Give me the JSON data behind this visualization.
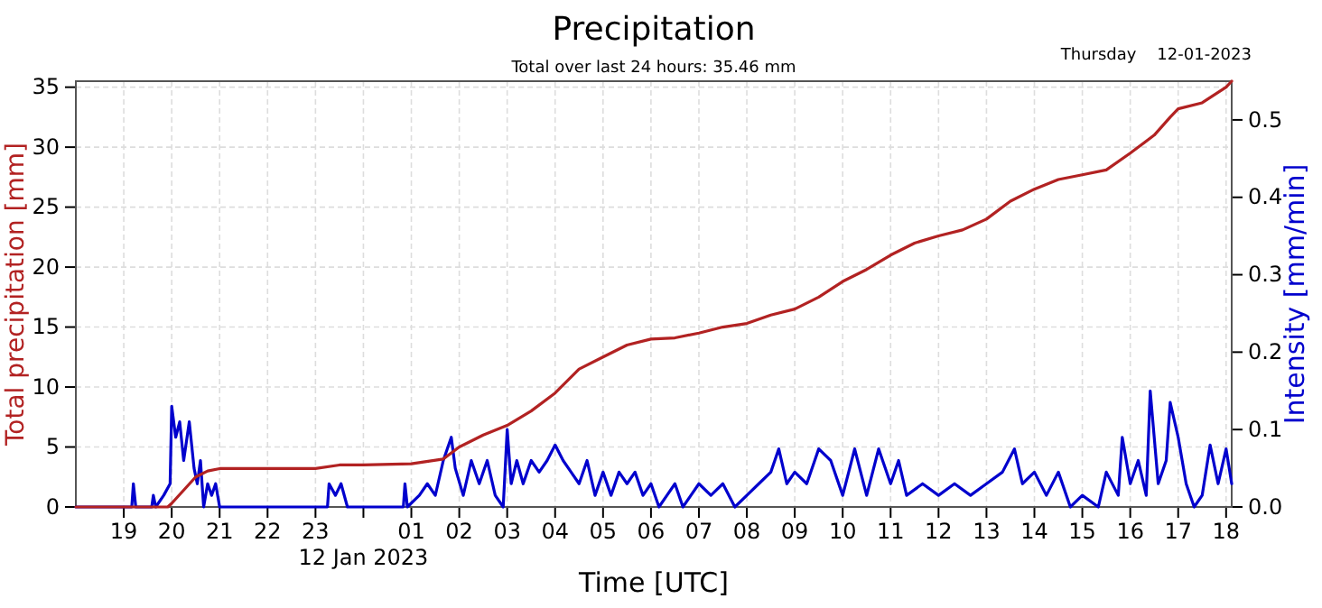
{
  "chart_data": {
    "type": "line",
    "title": "Precipitation",
    "subtitle": "Total over last 24 hours: 35.46 mm",
    "annotations": [
      "Thursday    12-01-2023",
      "12 Jan 2023"
    ],
    "xlabel": "Time [UTC]",
    "ylabel": "Total precipitation [mm]",
    "y2label": "Intensity [mm/min]",
    "xlim": [
      "2023-01-11T18:00",
      "2023-01-12T18:07"
    ],
    "xticks": [
      {
        "value": "2023-01-11T19:00",
        "label": "19"
      },
      {
        "value": "2023-01-11T20:00",
        "label": "20"
      },
      {
        "value": "2023-01-11T21:00",
        "label": "21"
      },
      {
        "value": "2023-01-11T22:00",
        "label": "22"
      },
      {
        "value": "2023-01-11T23:00",
        "label": "23"
      },
      {
        "value": "2023-01-12T00:00",
        "label": null
      },
      {
        "value": "2023-01-12T01:00",
        "label": "01"
      },
      {
        "value": "2023-01-12T02:00",
        "label": "02"
      },
      {
        "value": "2023-01-12T03:00",
        "label": "03"
      },
      {
        "value": "2023-01-12T04:00",
        "label": "04"
      },
      {
        "value": "2023-01-12T05:00",
        "label": "05"
      },
      {
        "value": "2023-01-12T06:00",
        "label": "06"
      },
      {
        "value": "2023-01-12T07:00",
        "label": "07"
      },
      {
        "value": "2023-01-12T08:00",
        "label": "08"
      },
      {
        "value": "2023-01-12T09:00",
        "label": "09"
      },
      {
        "value": "2023-01-12T10:00",
        "label": "10"
      },
      {
        "value": "2023-01-12T11:00",
        "label": "11"
      },
      {
        "value": "2023-01-12T12:00",
        "label": "12"
      },
      {
        "value": "2023-01-12T13:00",
        "label": "13"
      },
      {
        "value": "2023-01-12T14:00",
        "label": "14"
      },
      {
        "value": "2023-01-12T15:00",
        "label": "15"
      },
      {
        "value": "2023-01-12T16:00",
        "label": "16"
      },
      {
        "value": "2023-01-12T17:00",
        "label": "17"
      },
      {
        "value": "2023-01-12T18:00",
        "label": "18"
      }
    ],
    "ylim": [
      0,
      35.5
    ],
    "yticks": [
      0,
      5,
      10,
      15,
      20,
      25,
      30,
      35
    ],
    "y2lim": [
      0,
      0.55
    ],
    "y2ticks": [
      {
        "value": 0,
        "label": "0.0"
      },
      0.1,
      0.2,
      0.3,
      0.4,
      0.5
    ],
    "grid": true,
    "series": [
      {
        "color": "#0000cd",
        "axis": "y2",
        "x": [
          "2023-01-11T18:00",
          "2023-01-11T19:10",
          "2023-01-11T19:12",
          "2023-01-11T19:15",
          "2023-01-11T19:35",
          "2023-01-11T19:37",
          "2023-01-11T19:40",
          "2023-01-11T19:50",
          "2023-01-11T19:58",
          "2023-01-11T20:00",
          "2023-01-11T20:05",
          "2023-01-11T20:10",
          "2023-01-11T20:15",
          "2023-01-11T20:22",
          "2023-01-11T20:28",
          "2023-01-11T20:32",
          "2023-01-11T20:36",
          "2023-01-11T20:40",
          "2023-01-11T20:45",
          "2023-01-11T20:50",
          "2023-01-11T20:55",
          "2023-01-11T21:00",
          "2023-01-11T23:15",
          "2023-01-11T23:17",
          "2023-01-11T23:25",
          "2023-01-11T23:32",
          "2023-01-11T23:40",
          "2023-01-12T00:50",
          "2023-01-12T00:52",
          "2023-01-12T00:55",
          "2023-01-12T01:10",
          "2023-01-12T01:20",
          "2023-01-12T01:30",
          "2023-01-12T01:40",
          "2023-01-12T01:50",
          "2023-01-12T01:55",
          "2023-01-12T02:05",
          "2023-01-12T02:15",
          "2023-01-12T02:25",
          "2023-01-12T02:35",
          "2023-01-12T02:45",
          "2023-01-12T02:55",
          "2023-01-12T03:00",
          "2023-01-12T03:05",
          "2023-01-12T03:12",
          "2023-01-12T03:20",
          "2023-01-12T03:30",
          "2023-01-12T03:40",
          "2023-01-12T03:50",
          "2023-01-12T04:00",
          "2023-01-12T04:10",
          "2023-01-12T04:20",
          "2023-01-12T04:30",
          "2023-01-12T04:40",
          "2023-01-12T04:50",
          "2023-01-12T05:00",
          "2023-01-12T05:10",
          "2023-01-12T05:20",
          "2023-01-12T05:30",
          "2023-01-12T05:40",
          "2023-01-12T05:50",
          "2023-01-12T06:00",
          "2023-01-12T06:10",
          "2023-01-12T06:20",
          "2023-01-12T06:30",
          "2023-01-12T06:40",
          "2023-01-12T06:50",
          "2023-01-12T07:00",
          "2023-01-12T07:15",
          "2023-01-12T07:30",
          "2023-01-12T07:45",
          "2023-01-12T08:00",
          "2023-01-12T08:15",
          "2023-01-12T08:30",
          "2023-01-12T08:40",
          "2023-01-12T08:50",
          "2023-01-12T09:00",
          "2023-01-12T09:15",
          "2023-01-12T09:30",
          "2023-01-12T09:45",
          "2023-01-12T10:00",
          "2023-01-12T10:15",
          "2023-01-12T10:30",
          "2023-01-12T10:45",
          "2023-01-12T11:00",
          "2023-01-12T11:10",
          "2023-01-12T11:20",
          "2023-01-12T11:40",
          "2023-01-12T12:00",
          "2023-01-12T12:20",
          "2023-01-12T12:40",
          "2023-01-12T13:00",
          "2023-01-12T13:20",
          "2023-01-12T13:35",
          "2023-01-12T13:45",
          "2023-01-12T14:00",
          "2023-01-12T14:15",
          "2023-01-12T14:30",
          "2023-01-12T14:45",
          "2023-01-12T15:00",
          "2023-01-12T15:20",
          "2023-01-12T15:30",
          "2023-01-12T15:45",
          "2023-01-12T15:50",
          "2023-01-12T16:00",
          "2023-01-12T16:10",
          "2023-01-12T16:20",
          "2023-01-12T16:25",
          "2023-01-12T16:35",
          "2023-01-12T16:45",
          "2023-01-12T16:50",
          "2023-01-12T17:00",
          "2023-01-12T17:10",
          "2023-01-12T17:20",
          "2023-01-12T17:30",
          "2023-01-12T17:40",
          "2023-01-12T17:50",
          "2023-01-12T18:00",
          "2023-01-12T18:07"
        ],
        "values": [
          0,
          0,
          0.03,
          0,
          0,
          0.015,
          0,
          0.015,
          0.03,
          0.13,
          0.09,
          0.11,
          0.06,
          0.11,
          0.05,
          0.03,
          0.06,
          0,
          0.03,
          0.015,
          0.03,
          0,
          0,
          0.03,
          0.015,
          0.03,
          0,
          0,
          0.03,
          0,
          0.015,
          0.03,
          0.015,
          0.06,
          0.09,
          0.05,
          0.015,
          0.06,
          0.03,
          0.06,
          0.015,
          0,
          0.1,
          0.03,
          0.06,
          0.03,
          0.06,
          0.045,
          0.06,
          0.08,
          0.06,
          0.045,
          0.03,
          0.06,
          0.015,
          0.045,
          0.015,
          0.045,
          0.03,
          0.045,
          0.015,
          0.03,
          0,
          0.015,
          0.03,
          0,
          0.015,
          0.03,
          0.015,
          0.03,
          0,
          0.015,
          0.03,
          0.045,
          0.075,
          0.03,
          0.045,
          0.03,
          0.075,
          0.06,
          0.015,
          0.075,
          0.015,
          0.075,
          0.03,
          0.06,
          0.015,
          0.03,
          0.015,
          0.03,
          0.015,
          0.03,
          0.045,
          0.075,
          0.03,
          0.045,
          0.015,
          0.045,
          0,
          0.015,
          0,
          0.045,
          0.015,
          0.09,
          0.03,
          0.06,
          0.015,
          0.15,
          0.03,
          0.06,
          0.135,
          0.09,
          0.03,
          0,
          0.015,
          0.08,
          0.03,
          0.075,
          0.03
        ]
      },
      {
        "color": "#b22222",
        "x": [
          "2023-01-11T18:00",
          "2023-01-11T19:55",
          "2023-01-11T20:00",
          "2023-01-11T20:30",
          "2023-01-11T20:45",
          "2023-01-11T21:00",
          "2023-01-11T23:00",
          "2023-01-11T23:30",
          "2023-01-12T00:00",
          "2023-01-12T01:00",
          "2023-01-12T01:40",
          "2023-01-12T02:00",
          "2023-01-12T02:30",
          "2023-01-12T03:00",
          "2023-01-12T03:30",
          "2023-01-12T04:00",
          "2023-01-12T04:30",
          "2023-01-12T05:00",
          "2023-01-12T05:30",
          "2023-01-12T06:00",
          "2023-01-12T06:30",
          "2023-01-12T07:00",
          "2023-01-12T07:30",
          "2023-01-12T08:00",
          "2023-01-12T08:30",
          "2023-01-12T09:00",
          "2023-01-12T09:30",
          "2023-01-12T10:00",
          "2023-01-12T10:30",
          "2023-01-12T11:00",
          "2023-01-12T11:30",
          "2023-01-12T12:00",
          "2023-01-12T12:30",
          "2023-01-12T13:00",
          "2023-01-12T13:30",
          "2023-01-12T14:00",
          "2023-01-12T14:30",
          "2023-01-12T15:00",
          "2023-01-12T15:30",
          "2023-01-12T16:00",
          "2023-01-12T16:30",
          "2023-01-12T16:50",
          "2023-01-12T17:00",
          "2023-01-12T17:30",
          "2023-01-12T18:00",
          "2023-01-12T18:07"
        ],
        "values": [
          0,
          0,
          0.3,
          2.5,
          3.0,
          3.2,
          3.2,
          3.5,
          3.5,
          3.6,
          4.0,
          5.0,
          6.0,
          6.8,
          8.0,
          9.5,
          11.5,
          12.5,
          13.5,
          14.0,
          14.1,
          14.5,
          15.0,
          15.3,
          16.0,
          16.5,
          17.5,
          18.8,
          19.8,
          21.0,
          22.0,
          22.6,
          23.1,
          24.0,
          25.5,
          26.5,
          27.3,
          27.7,
          28.1,
          29.5,
          31.0,
          32.5,
          33.2,
          33.7,
          35.0,
          35.5
        ]
      }
    ]
  }
}
